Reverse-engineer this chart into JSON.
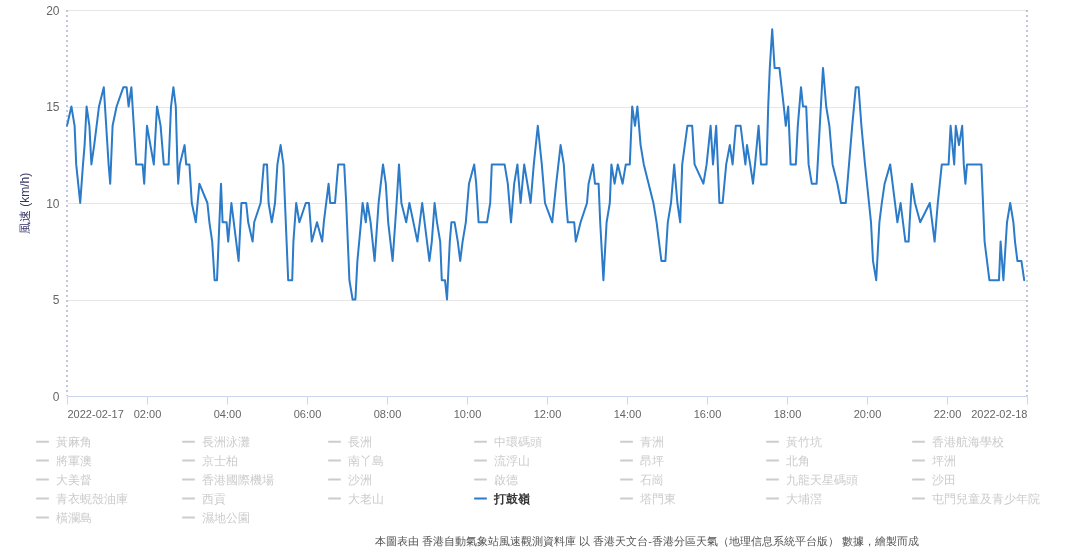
{
  "chart_data": {
    "type": "line",
    "ylabel": "風速 (km/h)",
    "xlim": [
      0,
      24
    ],
    "xticks": [
      {
        "value": 0,
        "label": "2022-02-17"
      },
      {
        "value": 2,
        "label": "02:00"
      },
      {
        "value": 4,
        "label": "04:00"
      },
      {
        "value": 6,
        "label": "06:00"
      },
      {
        "value": 8,
        "label": "08:00"
      },
      {
        "value": 10,
        "label": "10:00"
      },
      {
        "value": 12,
        "label": "12:00"
      },
      {
        "value": 14,
        "label": "14:00"
      },
      {
        "value": 16,
        "label": "16:00"
      },
      {
        "value": 18,
        "label": "18:00"
      },
      {
        "value": 20,
        "label": "20:00"
      },
      {
        "value": 22,
        "label": "22:00"
      },
      {
        "value": 24,
        "label": "2022-02-18"
      }
    ],
    "ylim": [
      0,
      20
    ],
    "yticks": [
      0,
      5,
      10,
      15,
      20
    ],
    "grid": "y",
    "legend": "bottom",
    "ref_lines": [
      {
        "axis": "x",
        "value": 0,
        "label": null,
        "color": "#8888c8",
        "line_style": "dotted"
      },
      {
        "axis": "x",
        "value": 24,
        "label": null,
        "color": "#8888c8",
        "line_style": "dotted"
      }
    ],
    "annotations": [
      "本圖表由 香港自動氣象站風速觀測資料庫 以 香港天文台-香港分區天氣（地理信息系統平台版） 數據，繪製而成"
    ],
    "series": [
      {
        "name": "黃麻角",
        "color": "#cccccc"
      },
      {
        "name": "長洲泳灘",
        "color": "#cccccc"
      },
      {
        "name": "長洲",
        "color": "#cccccc"
      },
      {
        "name": "中環碼頭",
        "color": "#cccccc"
      },
      {
        "name": "青洲",
        "color": "#cccccc"
      },
      {
        "name": "黃竹坑",
        "color": "#cccccc"
      },
      {
        "name": "香港航海學校",
        "color": "#cccccc"
      },
      {
        "name": "將軍澳",
        "color": "#cccccc"
      },
      {
        "name": "京士柏",
        "color": "#cccccc"
      },
      {
        "name": "南丫島",
        "color": "#cccccc"
      },
      {
        "name": "流浮山",
        "color": "#cccccc"
      },
      {
        "name": "昂坪",
        "color": "#cccccc"
      },
      {
        "name": "北角",
        "color": "#cccccc"
      },
      {
        "name": "坪洲",
        "color": "#cccccc"
      },
      {
        "name": "大美督",
        "color": "#cccccc"
      },
      {
        "name": "香港國際機場",
        "color": "#cccccc"
      },
      {
        "name": "沙洲",
        "color": "#cccccc"
      },
      {
        "name": "啟德",
        "color": "#cccccc"
      },
      {
        "name": "石崗",
        "color": "#cccccc"
      },
      {
        "name": "九龍天星碼頭",
        "color": "#cccccc"
      },
      {
        "name": "沙田",
        "color": "#cccccc"
      },
      {
        "name": "青衣蜆殼油庫",
        "color": "#cccccc"
      },
      {
        "name": "西貢",
        "color": "#cccccc"
      },
      {
        "name": "大老山",
        "color": "#cccccc"
      },
      {
        "name": "打鼓嶺",
        "color": "#2b7bc9",
        "x": [
          0,
          0.11,
          0.19,
          0.23,
          0.33,
          0.4,
          0.44,
          0.49,
          0.56,
          0.61,
          0.68,
          0.74,
          0.8,
          0.92,
          0.98,
          1.04,
          1.08,
          1.14,
          1.24,
          1.41,
          1.49,
          1.54,
          1.61,
          1.67,
          1.73,
          1.89,
          1.93,
          2,
          2.17,
          2.25,
          2.34,
          2.42,
          2.54,
          2.6,
          2.66,
          2.72,
          2.76,
          2.78,
          2.82,
          2.94,
          2.98,
          3.06,
          3.12,
          3.22,
          3.31,
          3.51,
          3.56,
          3.63,
          3.69,
          3.75,
          3.79,
          3.85,
          3.89,
          3.99,
          4.03,
          4.11,
          4.23,
          4.29,
          4.36,
          4.48,
          4.53,
          4.64,
          4.68,
          4.84,
          4.92,
          5,
          5.04,
          5.12,
          5.2,
          5.26,
          5.34,
          5.41,
          5.49,
          5.53,
          5.63,
          5.66,
          5.73,
          5.81,
          5.97,
          6.05,
          6.12,
          6.25,
          6.38,
          6.42,
          6.54,
          6.58,
          6.7,
          6.78,
          6.93,
          6.98,
          7.06,
          7.14,
          7.21,
          7.26,
          7.35,
          7.39,
          7.47,
          7.51,
          7.59,
          7.69,
          7.79,
          7.9,
          7.97,
          8.03,
          8.14,
          8.24,
          8.3,
          8.36,
          8.48,
          8.56,
          8.76,
          8.88,
          9,
          9.06,
          9.12,
          9.19,
          9.25,
          9.33,
          9.37,
          9.45,
          9.5,
          9.57,
          9.61,
          9.69,
          9.77,
          9.83,
          9.89,
          9.97,
          10.05,
          10.18,
          10.23,
          10.29,
          10.5,
          10.58,
          10.62,
          10.94,
          11.02,
          11.1,
          11.18,
          11.26,
          11.34,
          11.43,
          11.51,
          11.59,
          11.67,
          11.77,
          11.87,
          11.95,
          12.13,
          12.23,
          12.34,
          12.42,
          12.48,
          12.52,
          12.68,
          12.72,
          12.84,
          13,
          13.04,
          13.15,
          13.2,
          13.29,
          13.33,
          13.41,
          13.49,
          13.57,
          13.61,
          13.69,
          13.77,
          13.89,
          13.97,
          14.07,
          14.13,
          14.2,
          14.26,
          14.34,
          14.42,
          14.54,
          14.66,
          14.74,
          14.86,
          14.96,
          15.02,
          15.1,
          15.18,
          15.26,
          15.33,
          15.38,
          15.51,
          15.63,
          15.69,
          15.91,
          15.99,
          16.09,
          16.15,
          16.23,
          16.31,
          16.39,
          16.48,
          16.57,
          16.64,
          16.72,
          16.84,
          16.9,
          16.96,
          17,
          17.08,
          17.15,
          17.2,
          17.29,
          17.35,
          17.49,
          17.53,
          17.57,
          17.63,
          17.69,
          17.81,
          17.92,
          17.97,
          18.03,
          18.09,
          18.22,
          18.27,
          18.35,
          18.4,
          18.48,
          18.54,
          18.62,
          18.74,
          18.82,
          18.9,
          18.98,
          19.06,
          19.14,
          19.26,
          19.35,
          19.47,
          19.55,
          19.63,
          19.72,
          19.79,
          19.86,
          19.95,
          20.05,
          20.1,
          20.15,
          20.23,
          20.31,
          20.37,
          20.44,
          20.58,
          20.64,
          20.76,
          20.84,
          20.96,
          21.04,
          21.12,
          21.2,
          21.33,
          21.57,
          21.69,
          21.77,
          21.87,
          22.04,
          22.09,
          22.18,
          22.22,
          22.3,
          22.38,
          22.42,
          22.46,
          22.5,
          22.86,
          22.94,
          23.06,
          23.3,
          23.34,
          23.41,
          23.5,
          23.58,
          23.66,
          23.7,
          23.76,
          23.86,
          23.93
        ],
        "values": [
          14,
          15,
          14,
          12,
          10,
          12,
          13,
          15,
          14,
          12,
          13,
          14,
          15,
          16,
          14,
          12,
          11,
          14,
          15,
          16,
          16,
          15,
          16,
          14,
          12,
          12,
          11,
          14,
          12,
          15,
          14,
          12,
          12,
          15,
          16,
          15,
          12,
          11,
          12,
          13,
          12,
          12,
          10,
          9,
          11,
          10,
          9,
          8,
          6,
          6,
          8,
          11,
          9,
          9,
          8,
          10,
          8,
          7,
          10,
          10,
          9,
          8,
          9,
          10,
          12,
          12,
          10,
          9,
          10,
          12,
          13,
          12,
          8,
          6,
          6,
          8,
          10,
          9,
          10,
          10,
          8,
          9,
          8,
          9,
          11,
          10,
          10,
          12,
          12,
          10,
          6,
          5,
          5,
          7,
          9,
          10,
          9,
          10,
          9,
          7,
          10,
          12,
          11,
          9,
          7,
          10,
          12,
          10,
          9,
          10,
          8,
          10,
          8,
          7,
          8,
          10,
          9,
          8,
          6,
          6,
          5,
          8,
          9,
          9,
          8,
          7,
          8,
          9,
          11,
          12,
          11,
          9,
          9,
          10,
          12,
          12,
          11,
          9,
          11,
          12,
          10,
          12,
          11,
          10,
          12,
          14,
          12,
          10,
          9,
          11,
          13,
          12,
          10,
          9,
          9,
          8,
          9,
          10,
          11,
          12,
          11,
          11,
          9,
          6,
          9,
          10,
          12,
          11,
          12,
          11,
          12,
          12,
          15,
          14,
          15,
          13,
          12,
          11,
          10,
          9,
          7,
          7,
          9,
          10,
          12,
          10,
          9,
          12,
          14,
          14,
          12,
          11,
          12,
          14,
          12,
          14,
          10,
          10,
          12,
          13,
          12,
          14,
          14,
          13,
          12,
          13,
          12,
          11,
          12,
          14,
          12,
          12,
          15,
          17,
          19,
          17,
          17,
          15,
          14,
          15,
          12,
          12,
          14,
          16,
          15,
          15,
          12,
          11,
          11,
          14,
          17,
          15,
          14,
          12,
          11,
          10,
          10,
          12,
          14,
          16,
          16,
          14,
          12,
          10,
          9,
          7,
          6,
          9,
          10,
          11,
          12,
          11,
          9,
          10,
          8,
          8,
          11,
          10,
          9,
          10,
          8,
          10,
          12,
          12,
          14,
          12,
          14,
          13,
          14,
          12,
          11,
          12,
          12,
          8,
          6,
          6,
          8,
          6,
          9,
          10,
          9,
          8,
          7,
          7,
          6
        ]
      },
      {
        "name": "塔門東",
        "color": "#cccccc"
      },
      {
        "name": "大埔滘",
        "color": "#cccccc"
      },
      {
        "name": "屯門兒童及青少年院",
        "color": "#cccccc"
      },
      {
        "name": "橫瀾島",
        "color": "#cccccc"
      },
      {
        "name": "濕地公園",
        "color": "#cccccc"
      }
    ]
  }
}
